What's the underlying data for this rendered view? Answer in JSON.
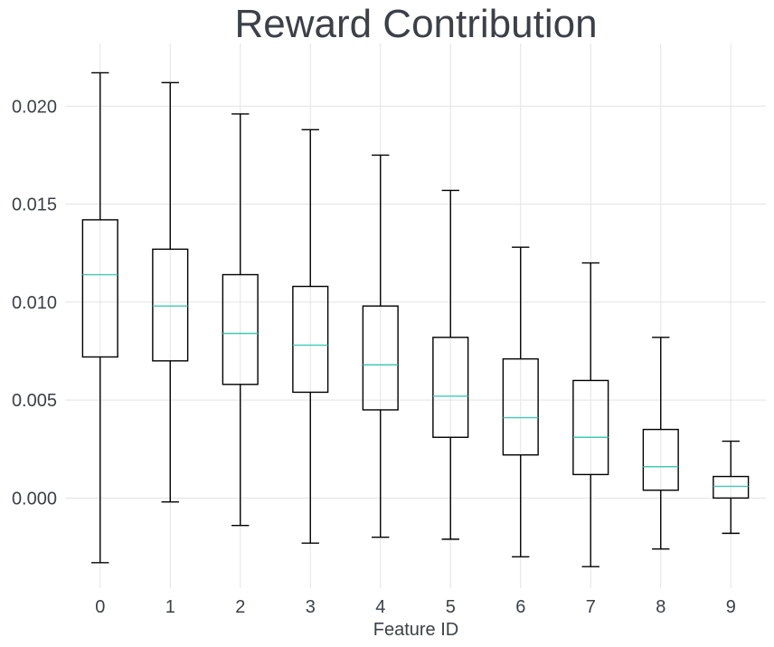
{
  "chart_data": {
    "type": "box",
    "title": "Reward Contribution",
    "xlabel": "Feature ID",
    "ylabel": "",
    "categories": [
      "0",
      "1",
      "2",
      "3",
      "4",
      "5",
      "6",
      "7",
      "8",
      "9"
    ],
    "ylim": [
      -0.0046,
      0.0232
    ],
    "yticks": [
      0.0,
      0.005,
      0.01,
      0.015,
      0.02
    ],
    "ytick_labels": [
      "0.000",
      "0.005",
      "0.010",
      "0.015",
      "0.020"
    ],
    "grid": true,
    "colors": {
      "box": "#000000",
      "median": "#40c9b4",
      "grid": "#e3e3e3",
      "text": "#3c4048"
    },
    "boxes": [
      {
        "category": "0",
        "whisker_low": -0.0033,
        "q1": 0.0072,
        "median": 0.0114,
        "q3": 0.0142,
        "whisker_high": 0.0217
      },
      {
        "category": "1",
        "whisker_low": -0.0002,
        "q1": 0.007,
        "median": 0.0098,
        "q3": 0.0127,
        "whisker_high": 0.0212
      },
      {
        "category": "2",
        "whisker_low": -0.0014,
        "q1": 0.0058,
        "median": 0.0084,
        "q3": 0.0114,
        "whisker_high": 0.0196
      },
      {
        "category": "3",
        "whisker_low": -0.0023,
        "q1": 0.0054,
        "median": 0.0078,
        "q3": 0.0108,
        "whisker_high": 0.0188
      },
      {
        "category": "4",
        "whisker_low": -0.002,
        "q1": 0.0045,
        "median": 0.0068,
        "q3": 0.0098,
        "whisker_high": 0.0175
      },
      {
        "category": "5",
        "whisker_low": -0.0021,
        "q1": 0.0031,
        "median": 0.0052,
        "q3": 0.0082,
        "whisker_high": 0.0157
      },
      {
        "category": "6",
        "whisker_low": -0.003,
        "q1": 0.0022,
        "median": 0.0041,
        "q3": 0.0071,
        "whisker_high": 0.0128
      },
      {
        "category": "7",
        "whisker_low": -0.0035,
        "q1": 0.0012,
        "median": 0.0031,
        "q3": 0.006,
        "whisker_high": 0.012
      },
      {
        "category": "8",
        "whisker_low": -0.0026,
        "q1": 0.0004,
        "median": 0.0016,
        "q3": 0.0035,
        "whisker_high": 0.0082
      },
      {
        "category": "9",
        "whisker_low": -0.0018,
        "q1": -0.0,
        "median": 0.0006,
        "q3": 0.0011,
        "whisker_high": 0.0029
      }
    ]
  }
}
